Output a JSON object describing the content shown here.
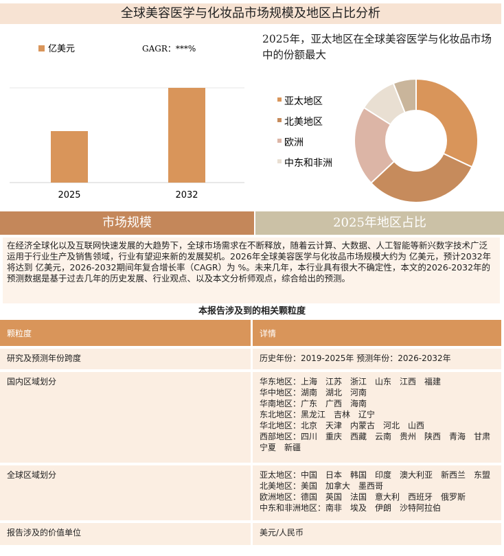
{
  "header": {
    "title": "全球美容医学与化妆品市场规模及地区占比分析"
  },
  "chart_data": [
    {
      "type": "bar",
      "series": [
        {
          "name": "亿美元",
          "color": "#d9955a",
          "values": [
            75,
            138
          ]
        }
      ],
      "categories": [
        "2025",
        "2032"
      ],
      "annotation": "GAGR：***%"
    },
    {
      "type": "pie",
      "title": "2025年，亚太地区在全球美容医学与化妆品市场中的份额最大",
      "categories": [
        "亚太地区",
        "北美地区",
        "欧洲",
        "中东和非洲",
        null
      ],
      "values": [
        32,
        31,
        21,
        10,
        6
      ],
      "colors": [
        "#d9955a",
        "#c68b5c",
        "#dcb5a6",
        "#e9dfd2",
        "#c9b59b"
      ]
    }
  ],
  "sections": [
    "市场规模",
    "2025年地区占比"
  ],
  "paragraph": "在经济全球化以及互联网快速发展的大趋势下，全球市场需求在不断释放，随着云计算、大数据、人工智能等新兴数字技术广泛运用于行业生产及销售领域，行业有望迎来新的发展契机。2026年全球美容医学与化妆品市场规模大约为 亿美元，预计2032年将达到 亿美元，2026-2032期间年复合增长率（CAGR）为 %。未来几年，本行业具有很大不确定性，本文的2026-2032年的预测数据是基于过去几年的历史发展、行业观点、以及本文分析师观点，综合给出的预测。",
  "table": {
    "title": "本报告涉及到的相关颗粒度",
    "header": [
      "颗粒度",
      "详情"
    ],
    "rows": [
      [
        "研究及预测年份跨度",
        [
          "历史年份：2019-2025年 预测年份：2026-2032年"
        ]
      ],
      [
        "国内区域划分",
        [
          "华东地区：上海　江苏　浙江　山东　江西　福建",
          "华中地区：湖南　湖北　河南",
          "华南地区：广东　广西　海南",
          "东北地区：黑龙江　吉林　辽宁",
          "华北地区：北京　天津　内蒙古　河北　山西",
          "西部地区：四川　重庆　西藏　云南　贵州　陕西　青海　甘肃　宁夏　新疆"
        ]
      ],
      [
        "全球区域划分",
        [
          "亚太地区：中国　日本　韩国　印度　澳大利亚　新西兰　东盟",
          "北美地区：美国　加拿大　墨西哥",
          "欧洲地区：德国　英国　法国　意大利　西班牙　俄罗斯",
          "中东和非洲地区：南非　埃及　伊朗　沙特阿拉伯"
        ]
      ],
      [
        "报告涉及的价值单位",
        [
          "美元/人民币"
        ]
      ]
    ]
  }
}
